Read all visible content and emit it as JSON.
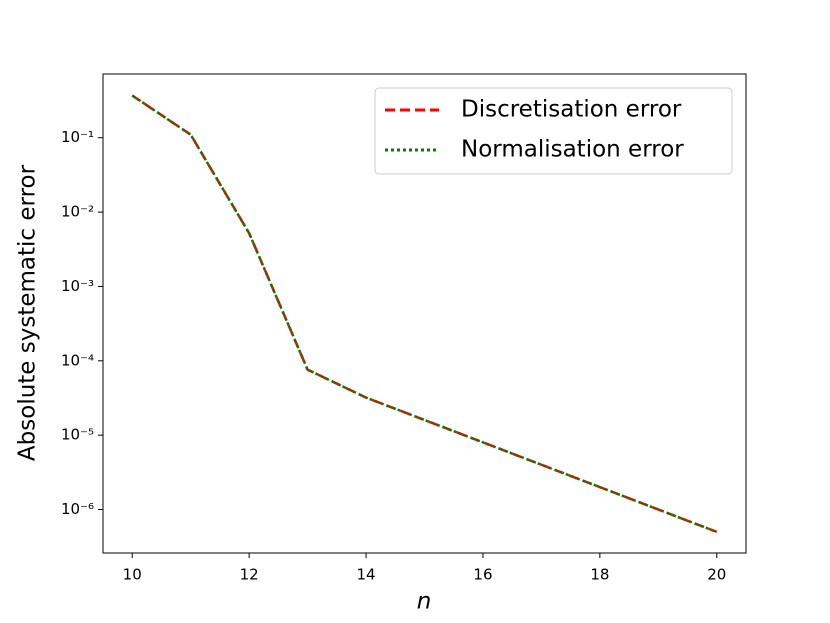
{
  "chart_data": {
    "type": "line",
    "xlabel": "n",
    "ylabel": "Absolute systematic error",
    "x": [
      10,
      11,
      12,
      13,
      14,
      15,
      16,
      17,
      18,
      19,
      20
    ],
    "series": [
      {
        "name": "Discretisation error",
        "color": "#ff0000",
        "dash": "dashed",
        "values": [
          0.37,
          0.11,
          0.0052,
          7.6e-05,
          3.2e-05,
          1.6e-05,
          8e-06,
          4e-06,
          2e-06,
          1e-06,
          5e-07
        ]
      },
      {
        "name": "Normalisation error",
        "color": "#008000",
        "dash": "dotted",
        "values": [
          0.37,
          0.11,
          0.0052,
          7.6e-05,
          3.2e-05,
          1.6e-05,
          8e-06,
          4e-06,
          2e-06,
          1e-06,
          5e-07
        ]
      }
    ],
    "xlim": [
      9.5,
      20.5
    ],
    "xticks": [
      10,
      12,
      14,
      16,
      18,
      20
    ],
    "ylim": [
      2.6e-07,
      0.72
    ],
    "yscale": "log",
    "yticks": [
      {
        "value": 0.1,
        "label": "10⁻¹"
      },
      {
        "value": 0.01,
        "label": "10⁻²"
      },
      {
        "value": 0.001,
        "label": "10⁻³"
      },
      {
        "value": 0.0001,
        "label": "10⁻⁴"
      },
      {
        "value": 1e-05,
        "label": "10⁻⁵"
      },
      {
        "value": 1e-06,
        "label": "10⁻⁶"
      }
    ],
    "legend": "upper right"
  }
}
